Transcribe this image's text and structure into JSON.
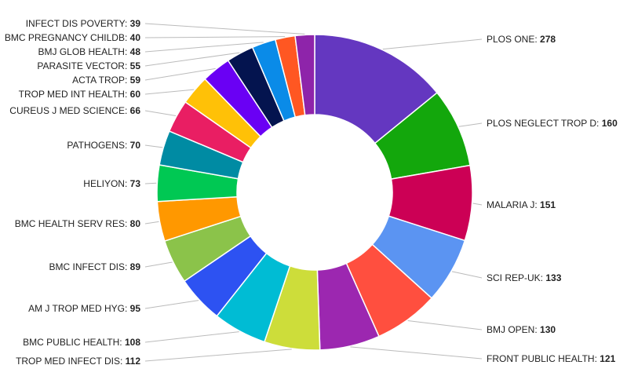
{
  "chart_data": {
    "type": "pie",
    "variant": "donut",
    "title": "",
    "legend": "none",
    "categories": [
      "PLOS ONE",
      "PLOS NEGLECT TROP D",
      "MALARIA J",
      "SCI REP-UK",
      "BMJ OPEN",
      "FRONT PUBLIC HEALTH",
      "TROP MED INFECT DIS",
      "BMC PUBLIC HEALTH",
      "AM J TROP MED HYG",
      "BMC INFECT DIS",
      "BMC HEALTH SERV RES",
      "HELIYON",
      "PATHOGENS",
      "CUREUS J MED SCIENCE",
      "TROP MED INT HEALTH",
      "ACTA TROP",
      "PARASITE VECTOR",
      "BMJ GLOB HEALTH",
      "BMC PREGNANCY CHILDB",
      "INFECT DIS POVERTY"
    ],
    "values": [
      278,
      160,
      151,
      133,
      130,
      121,
      112,
      108,
      95,
      89,
      80,
      73,
      70,
      66,
      60,
      59,
      55,
      48,
      40,
      39
    ],
    "colors": [
      "#6437c0",
      "#13a70c",
      "#cc0055",
      "#5b94f2",
      "#ff4f3f",
      "#9c27b0",
      "#cddd3a",
      "#00bcd4",
      "#2d52f2",
      "#8bc34a",
      "#ff9800",
      "#00c853",
      "#008ba3",
      "#e91e63",
      "#ffc107",
      "#6a00f4",
      "#04144f",
      "#0a8be8",
      "#ff5722",
      "#8e24aa"
    ]
  }
}
